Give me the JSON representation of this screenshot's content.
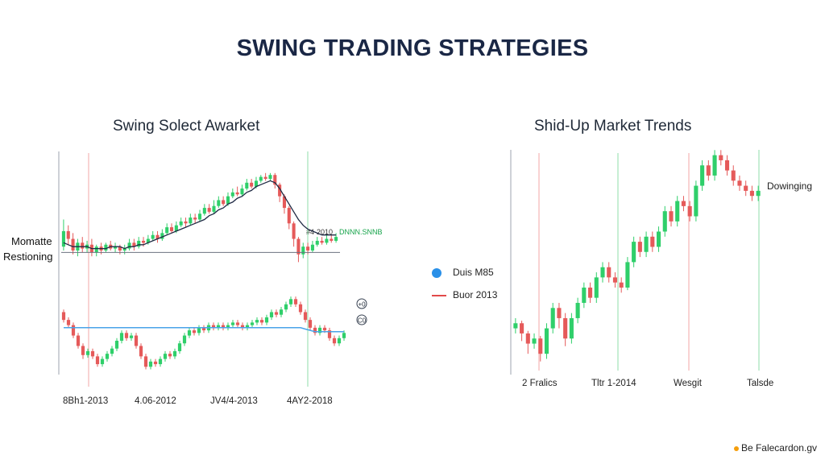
{
  "title": "SWING TRADING STRATEGIES",
  "footer": "Be Falecardon.gv",
  "colors": {
    "up": "#2fcf6a",
    "down": "#e55a5a",
    "title": "#1a2745",
    "ma_dark": "#1f2a44",
    "ma_blue": "#4aa3e8"
  },
  "chart_data": [
    {
      "type": "candlestick",
      "title": "Swing Solect Awarket",
      "side_labels": [
        "Momatte",
        "Restioning"
      ],
      "x_tick_labels": [
        "8Bh1-2013",
        "4.06-2012",
        "JV4/4-2013",
        "4AY2-2018"
      ],
      "annotations": [
        "#4-2010",
        "DNNN.SNNB"
      ],
      "small_icons": [
        "+0",
        "C0"
      ],
      "panels": [
        {
          "name": "upper",
          "candles": [
            [
              62,
              70,
              76,
              60
            ],
            [
              70,
              66,
              73,
              63
            ],
            [
              66,
              60,
              69,
              58
            ],
            [
              60,
              64,
              66,
              57
            ],
            [
              64,
              61,
              67,
              59
            ],
            [
              61,
              63,
              65,
              59
            ],
            [
              63,
              59,
              66,
              57
            ],
            [
              59,
              62,
              63,
              57
            ],
            [
              62,
              60,
              64,
              58
            ],
            [
              60,
              63,
              64,
              59
            ],
            [
              63,
              61,
              65,
              60
            ],
            [
              61,
              62,
              64,
              59
            ],
            [
              62,
              60,
              63,
              58
            ],
            [
              60,
              61,
              63,
              58
            ],
            [
              61,
              64,
              66,
              60
            ],
            [
              64,
              62,
              66,
              60
            ],
            [
              62,
              65,
              67,
              61
            ],
            [
              65,
              64,
              67,
              62
            ],
            [
              64,
              66,
              68,
              63
            ],
            [
              66,
              68,
              70,
              65
            ],
            [
              68,
              66,
              70,
              64
            ],
            [
              66,
              69,
              71,
              65
            ],
            [
              69,
              72,
              74,
              68
            ],
            [
              72,
              70,
              74,
              69
            ],
            [
              70,
              73,
              75,
              69
            ],
            [
              73,
              75,
              77,
              72
            ],
            [
              75,
              74,
              77,
              72
            ],
            [
              74,
              77,
              79,
              73
            ],
            [
              77,
              76,
              79,
              74
            ],
            [
              76,
              79,
              81,
              75
            ],
            [
              79,
              82,
              84,
              78
            ],
            [
              82,
              80,
              84,
              79
            ],
            [
              80,
              83,
              86,
              79
            ],
            [
              83,
              86,
              88,
              82
            ],
            [
              86,
              84,
              88,
              83
            ],
            [
              84,
              88,
              90,
              83
            ],
            [
              88,
              90,
              92,
              87
            ],
            [
              90,
              89,
              93,
              88
            ],
            [
              89,
              92,
              94,
              88
            ],
            [
              92,
              95,
              97,
              91
            ],
            [
              95,
              93,
              97,
              92
            ],
            [
              93,
              96,
              98,
              92
            ],
            [
              96,
              98,
              99,
              95
            ],
            [
              98,
              97,
              100,
              96
            ],
            [
              97,
              99,
              100,
              96
            ],
            [
              99,
              94,
              100,
              92
            ],
            [
              94,
              88,
              95,
              85
            ],
            [
              88,
              82,
              89,
              79
            ],
            [
              82,
              74,
              83,
              71
            ],
            [
              74,
              66,
              75,
              62
            ],
            [
              66,
              58,
              67,
              54
            ],
            [
              58,
              62,
              64,
              56
            ],
            [
              62,
              60,
              64,
              58
            ],
            [
              60,
              63,
              65,
              59
            ],
            [
              63,
              65,
              67,
              62
            ],
            [
              65,
              64,
              67,
              63
            ],
            [
              64,
              66,
              68,
              63
            ],
            [
              66,
              65,
              68,
              64
            ],
            [
              65,
              67,
              69,
              64
            ]
          ],
          "moving_average": [
            64,
            63,
            62,
            62,
            62,
            62,
            61,
            61,
            61,
            61,
            62,
            62,
            62,
            61,
            62,
            62,
            63,
            63,
            64,
            65,
            66,
            67,
            68,
            69,
            70,
            71,
            72,
            73,
            74,
            75,
            76,
            78,
            79,
            81,
            82,
            84,
            85,
            87,
            88,
            90,
            91,
            93,
            94,
            95,
            96,
            95,
            92,
            88,
            84,
            80,
            76,
            73,
            71,
            70,
            69,
            68,
            68,
            68,
            68
          ],
          "horizontal_line": 59,
          "y_range": [
            50,
            102
          ]
        },
        {
          "name": "lower",
          "candles": [
            [
              78,
              72,
              80,
              70
            ],
            [
              72,
              68,
              74,
              66
            ],
            [
              68,
              60,
              70,
              58
            ],
            [
              60,
              52,
              62,
              50
            ],
            [
              52,
              45,
              54,
              42
            ],
            [
              45,
              48,
              50,
              43
            ],
            [
              48,
              44,
              50,
              42
            ],
            [
              44,
              38,
              46,
              36
            ],
            [
              38,
              42,
              44,
              36
            ],
            [
              42,
              46,
              48,
              40
            ],
            [
              46,
              50,
              52,
              44
            ],
            [
              50,
              56,
              58,
              48
            ],
            [
              56,
              62,
              64,
              54
            ],
            [
              62,
              58,
              64,
              56
            ],
            [
              58,
              60,
              62,
              56
            ],
            [
              60,
              52,
              62,
              50
            ],
            [
              52,
              44,
              54,
              42
            ],
            [
              44,
              36,
              46,
              34
            ],
            [
              36,
              40,
              42,
              34
            ],
            [
              40,
              38,
              42,
              36
            ],
            [
              38,
              42,
              44,
              36
            ],
            [
              42,
              46,
              48,
              40
            ],
            [
              46,
              44,
              48,
              42
            ],
            [
              44,
              48,
              50,
              42
            ],
            [
              48,
              54,
              56,
              46
            ],
            [
              54,
              60,
              62,
              52
            ],
            [
              60,
              64,
              66,
              58
            ],
            [
              64,
              62,
              66,
              60
            ],
            [
              62,
              66,
              68,
              60
            ],
            [
              66,
              64,
              68,
              62
            ],
            [
              64,
              68,
              70,
              62
            ],
            [
              68,
              66,
              70,
              64
            ],
            [
              66,
              68,
              70,
              64
            ],
            [
              68,
              66,
              70,
              64
            ],
            [
              66,
              68,
              70,
              64
            ],
            [
              68,
              70,
              72,
              66
            ],
            [
              70,
              68,
              72,
              66
            ],
            [
              68,
              66,
              70,
              64
            ],
            [
              66,
              68,
              70,
              64
            ],
            [
              68,
              70,
              72,
              66
            ],
            [
              70,
              72,
              74,
              68
            ],
            [
              72,
              70,
              74,
              68
            ],
            [
              70,
              74,
              76,
              68
            ],
            [
              74,
              78,
              80,
              72
            ],
            [
              78,
              76,
              80,
              74
            ],
            [
              76,
              80,
              82,
              74
            ],
            [
              80,
              84,
              86,
              78
            ],
            [
              84,
              88,
              90,
              82
            ],
            [
              88,
              84,
              90,
              82
            ],
            [
              84,
              78,
              86,
              76
            ],
            [
              78,
              72,
              80,
              70
            ],
            [
              72,
              66,
              74,
              64
            ],
            [
              66,
              62,
              68,
              60
            ],
            [
              62,
              66,
              68,
              60
            ],
            [
              66,
              64,
              68,
              62
            ],
            [
              64,
              58,
              66,
              56
            ],
            [
              58,
              54,
              60,
              52
            ],
            [
              54,
              58,
              60,
              52
            ],
            [
              58,
              62,
              64,
              56
            ]
          ],
          "moving_average": [
            66,
            66,
            66,
            66,
            66,
            66,
            66,
            66,
            66,
            66,
            66,
            66,
            66,
            66,
            66,
            66,
            66,
            66,
            66,
            66,
            66,
            66,
            66,
            66,
            66,
            66,
            66,
            66,
            66,
            66,
            66,
            66,
            66,
            66,
            66,
            66,
            66,
            66,
            66,
            66,
            66,
            66,
            66,
            66,
            66,
            66,
            66,
            66,
            66,
            66,
            65,
            64,
            63,
            63,
            63,
            63,
            63,
            63,
            63
          ],
          "y_range": [
            30,
            95
          ]
        }
      ]
    },
    {
      "type": "candlestick",
      "title": "Shid-Up Market Trends",
      "legend": [
        {
          "label": "Duis M85",
          "marker": "dot"
        },
        {
          "label": "Buor 2013",
          "marker": "line"
        }
      ],
      "x_tick_labels": [
        "2 Fralics",
        "Tltr 1-2014",
        "Wesgit",
        "Talsde"
      ],
      "annotations": [
        "Dowinging"
      ],
      "candles": [
        [
          40,
          42,
          44,
          38
        ],
        [
          42,
          38,
          43,
          35
        ],
        [
          38,
          34,
          39,
          30
        ],
        [
          34,
          36,
          38,
          32
        ],
        [
          36,
          30,
          37,
          27
        ],
        [
          30,
          40,
          42,
          28
        ],
        [
          40,
          48,
          50,
          38
        ],
        [
          48,
          44,
          50,
          40
        ],
        [
          44,
          36,
          46,
          33
        ],
        [
          36,
          44,
          46,
          34
        ],
        [
          44,
          50,
          52,
          42
        ],
        [
          50,
          56,
          58,
          48
        ],
        [
          56,
          52,
          58,
          50
        ],
        [
          52,
          60,
          62,
          50
        ],
        [
          60,
          64,
          66,
          58
        ],
        [
          64,
          60,
          66,
          58
        ],
        [
          60,
          58,
          62,
          56
        ],
        [
          58,
          56,
          60,
          54
        ],
        [
          56,
          66,
          68,
          55
        ],
        [
          66,
          74,
          76,
          64
        ],
        [
          74,
          70,
          76,
          68
        ],
        [
          70,
          76,
          78,
          68
        ],
        [
          76,
          72,
          78,
          70
        ],
        [
          72,
          78,
          80,
          70
        ],
        [
          78,
          86,
          88,
          76
        ],
        [
          86,
          82,
          88,
          80
        ],
        [
          82,
          90,
          92,
          80
        ],
        [
          90,
          88,
          92,
          86
        ],
        [
          88,
          84,
          90,
          82
        ],
        [
          84,
          96,
          98,
          82
        ],
        [
          96,
          104,
          106,
          94
        ],
        [
          104,
          100,
          106,
          98
        ],
        [
          100,
          108,
          110,
          98
        ],
        [
          108,
          106,
          110,
          104
        ],
        [
          106,
          102,
          108,
          100
        ],
        [
          102,
          98,
          104,
          96
        ],
        [
          98,
          96,
          100,
          94
        ],
        [
          96,
          94,
          98,
          92
        ],
        [
          94,
          92,
          96,
          90
        ],
        [
          92,
          94,
          96,
          90
        ]
      ],
      "y_range": [
        25,
        112
      ]
    }
  ]
}
